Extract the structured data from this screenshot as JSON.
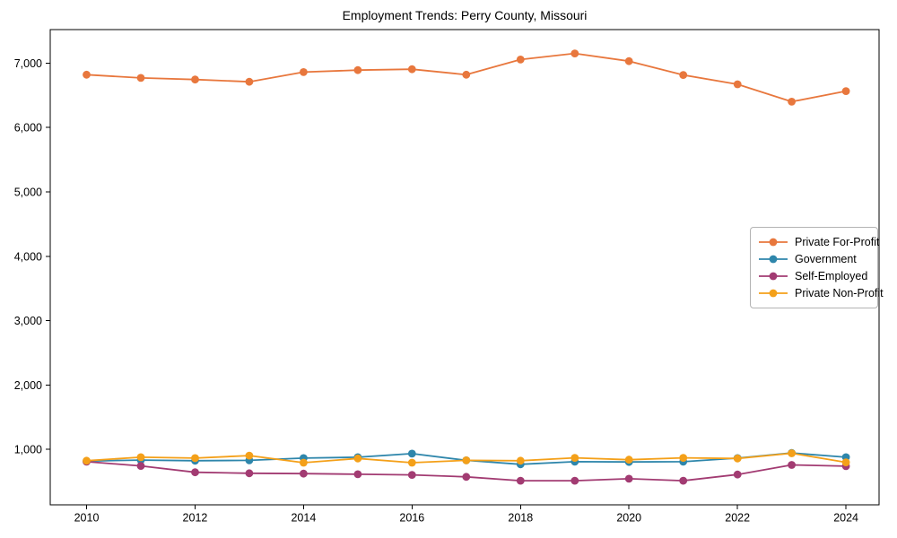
{
  "title": "Employment Trends: Perry County, Missouri",
  "chart_data": {
    "type": "line",
    "title": "Employment Trends: Perry County, Missouri",
    "xlabel": "",
    "ylabel": "",
    "grid": false,
    "legend_position": "center-right",
    "marker": "circle",
    "x": [
      2010,
      2011,
      2012,
      2013,
      2014,
      2015,
      2016,
      2017,
      2018,
      2019,
      2020,
      2021,
      2022,
      2023,
      2024
    ],
    "series": [
      {
        "name": "Private For-Profit",
        "color": "#E8773D",
        "values": [
          6820,
          6770,
          6745,
          6710,
          6860,
          6890,
          6905,
          6820,
          7055,
          7150,
          7030,
          6815,
          6670,
          6400,
          6565
        ]
      },
      {
        "name": "Government",
        "color": "#2E86AB",
        "values": [
          820,
          835,
          825,
          830,
          865,
          880,
          935,
          830,
          770,
          810,
          805,
          810,
          865,
          945,
          880
        ]
      },
      {
        "name": "Self-Employed",
        "color": "#A23B72",
        "values": [
          810,
          745,
          645,
          630,
          625,
          615,
          605,
          575,
          515,
          515,
          545,
          515,
          610,
          760,
          740
        ]
      },
      {
        "name": "Private Non-Profit",
        "color": "#F4A019",
        "values": [
          825,
          880,
          865,
          905,
          795,
          860,
          795,
          830,
          825,
          870,
          840,
          870,
          860,
          940,
          800
        ]
      }
    ],
    "xtick_values": [
      2010,
      2012,
      2014,
      2016,
      2018,
      2020,
      2022,
      2024
    ],
    "xtick_labels": [
      "2010",
      "2012",
      "2014",
      "2016",
      "2018",
      "2020",
      "2022",
      "2024"
    ],
    "ytick_values": [
      1000,
      2000,
      3000,
      4000,
      5000,
      6000,
      7000
    ],
    "ytick_labels": [
      "1,000",
      "2,000",
      "3,000",
      "4,000",
      "5,000",
      "6,000",
      "7,000"
    ],
    "xlim": [
      2009.33,
      2024.61
    ],
    "ylim": [
      140,
      7520
    ]
  }
}
